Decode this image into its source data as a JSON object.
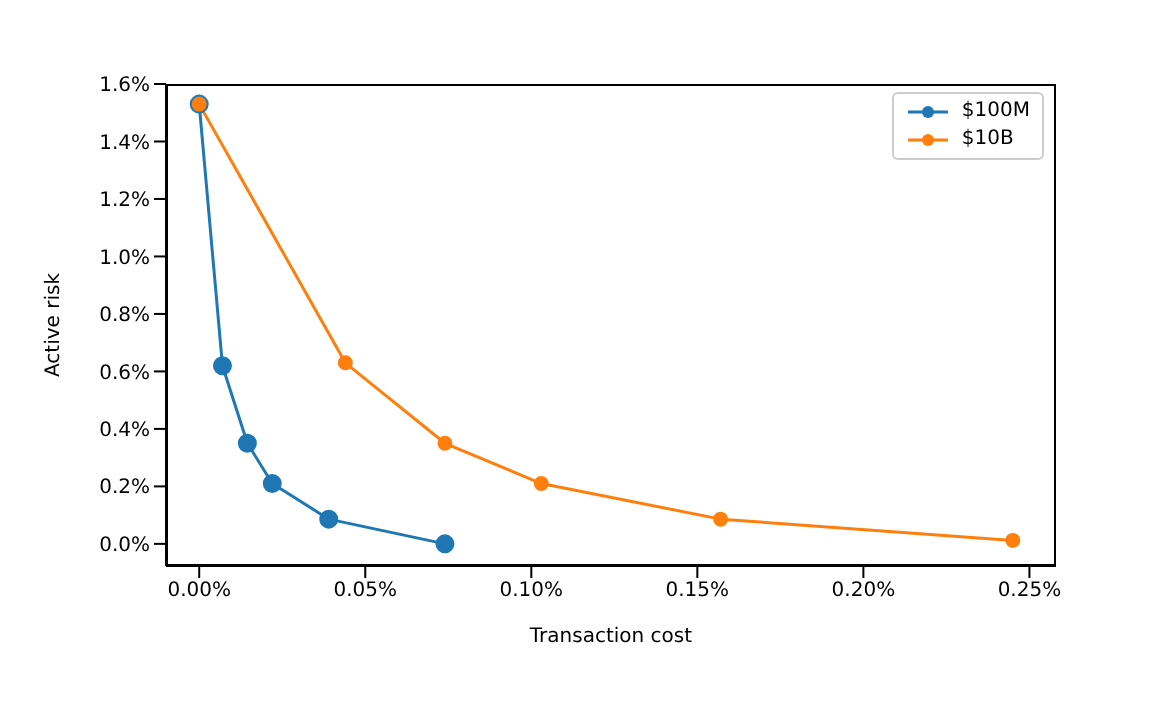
{
  "chart_data": {
    "type": "line",
    "xlabel": "Transaction cost",
    "ylabel": "Active risk",
    "xlim": [
      -0.01,
      0.258
    ],
    "ylim": [
      -0.077,
      1.6
    ],
    "xticks": [
      {
        "value": 0,
        "label": "0.00%"
      },
      {
        "value": 0.05,
        "label": "0.05%"
      },
      {
        "value": 0.1,
        "label": "0.10%"
      },
      {
        "value": 0.15,
        "label": "0.15%"
      },
      {
        "value": 0.2,
        "label": "0.20%"
      },
      {
        "value": 0.25,
        "label": "0.25%"
      }
    ],
    "yticks": [
      {
        "value": 0,
        "label": "0.0%"
      },
      {
        "value": 0.2,
        "label": "0.2%"
      },
      {
        "value": 0.4,
        "label": "0.4%"
      },
      {
        "value": 0.6,
        "label": "0.6%"
      },
      {
        "value": 0.8,
        "label": "0.8%"
      },
      {
        "value": 1.0,
        "label": "1.0%"
      },
      {
        "value": 1.2,
        "label": "1.2%"
      },
      {
        "value": 1.4,
        "label": "1.4%"
      },
      {
        "value": 1.6,
        "label": "1.6%"
      }
    ],
    "series": [
      {
        "name": "$100M",
        "color": "#1f77b4",
        "x": [
          0,
          0.007,
          0.0145,
          0.022,
          0.039,
          0.074
        ],
        "values": [
          1.53,
          0.62,
          0.35,
          0.21,
          0.086,
          0.0
        ]
      },
      {
        "name": "$10B",
        "color": "#ff7f0e",
        "x": [
          0,
          0.044,
          0.074,
          0.103,
          0.157,
          0.245
        ],
        "values": [
          1.53,
          0.63,
          0.35,
          0.21,
          0.086,
          0.012
        ]
      }
    ],
    "marker": "circle",
    "line_style": "solid",
    "legend": "top right",
    "grid": false
  }
}
